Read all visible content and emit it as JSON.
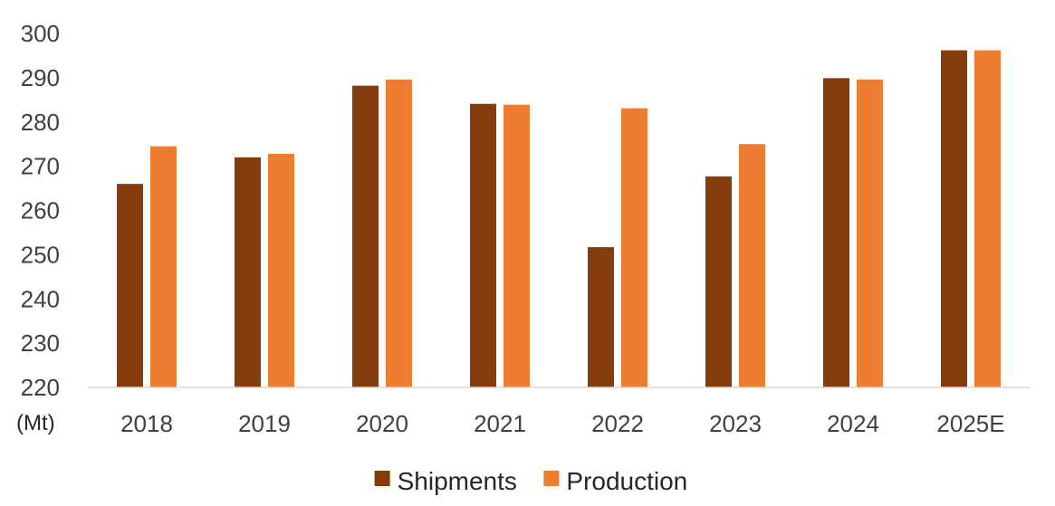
{
  "chart_data": {
    "type": "bar",
    "ylabel": "(Mt)",
    "categories": [
      "2018",
      "2019",
      "2020",
      "2021",
      "2022",
      "2023",
      "2024",
      "2025E"
    ],
    "series": [
      {
        "name": "Shipments",
        "color": "#843C0C",
        "values": [
          266,
          272,
          288.2,
          284.1,
          251.7,
          267.7,
          289.9,
          296.2
        ]
      },
      {
        "name": "Production",
        "color": "#ED7D31",
        "values": [
          274.5,
          272.8,
          289.6,
          283.9,
          283.1,
          275,
          289.6,
          296.2
        ]
      }
    ],
    "ylim": [
      220,
      300
    ],
    "yticks": [
      220,
      230,
      240,
      250,
      260,
      270,
      280,
      290,
      300
    ],
    "grid": false,
    "legend_position": "bottom"
  }
}
